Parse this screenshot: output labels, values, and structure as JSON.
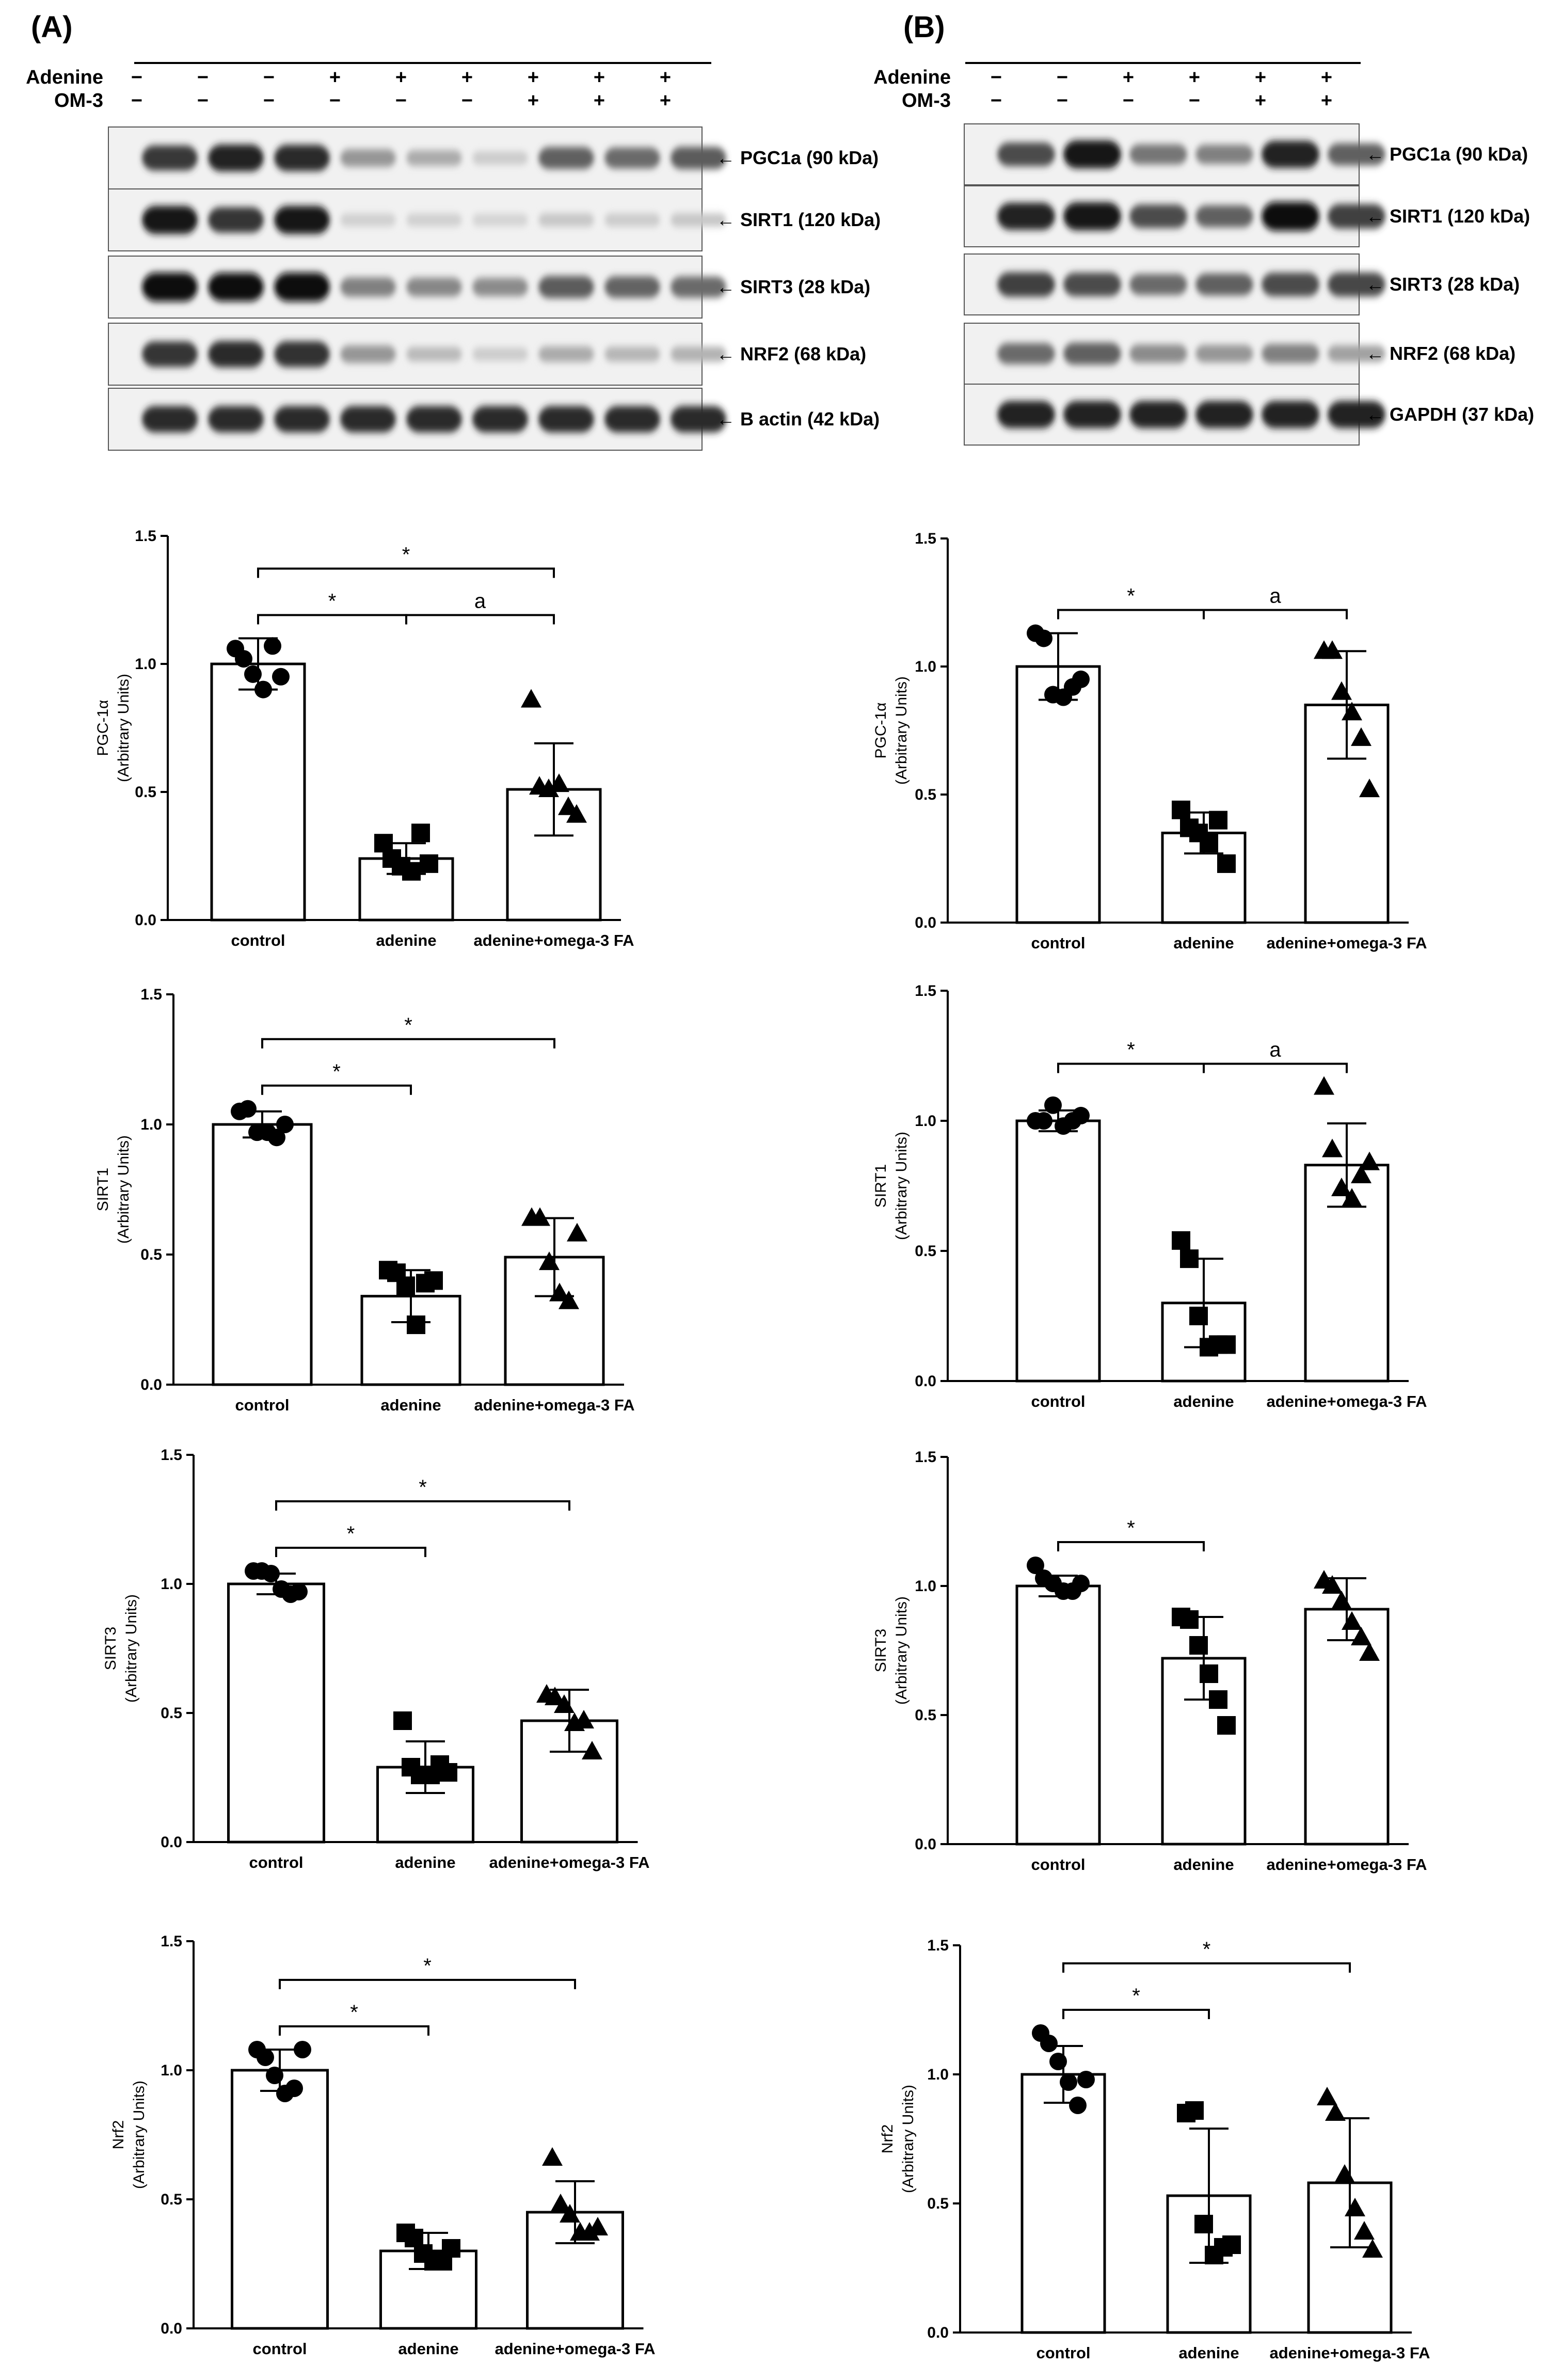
{
  "panels": [
    {
      "label": "(A)",
      "treatment_rows": [
        {
          "name": "Adenine",
          "signs": [
            "−",
            "−",
            "−",
            "+",
            "+",
            "+",
            "+",
            "+",
            "+"
          ]
        },
        {
          "name": "OM-3",
          "signs": [
            "−",
            "−",
            "−",
            "−",
            "−",
            "−",
            "+",
            "+",
            "+"
          ]
        }
      ],
      "blots": [
        {
          "label": "← PGC1a (90 kDa)",
          "intensity": [
            0.78,
            0.88,
            0.85,
            0.35,
            0.25,
            0.1,
            0.6,
            0.55,
            0.62
          ]
        },
        {
          "label": "← SIRT1 (120 kDa)",
          "intensity": [
            0.95,
            0.8,
            0.95,
            0.08,
            0.08,
            0.06,
            0.12,
            0.1,
            0.12
          ]
        },
        {
          "label": "← SIRT3 (28 kDa)",
          "intensity": [
            1,
            0.98,
            1,
            0.45,
            0.42,
            0.4,
            0.62,
            0.58,
            0.55
          ]
        },
        {
          "label": "← NRF2 (68 kDa)",
          "intensity": [
            0.8,
            0.85,
            0.82,
            0.35,
            0.18,
            0.1,
            0.25,
            0.2,
            0.22
          ]
        },
        {
          "label": "← B actin (42 kDa)",
          "intensity": [
            0.85,
            0.85,
            0.85,
            0.85,
            0.85,
            0.85,
            0.85,
            0.85,
            0.85
          ]
        }
      ]
    },
    {
      "label": "(B)",
      "treatment_rows": [
        {
          "name": "Adenine",
          "signs": [
            "−",
            "−",
            "+",
            "+",
            "+",
            "+"
          ]
        },
        {
          "name": "OM-3",
          "signs": [
            "−",
            "−",
            "−",
            "−",
            "+",
            "+"
          ]
        }
      ],
      "blots": [
        {
          "label": "← PGC1a (90 kDa)",
          "intensity": [
            0.7,
            0.95,
            0.5,
            0.45,
            0.9,
            0.6
          ]
        },
        {
          "label": "← SIRT1 (120 kDa)",
          "intensity": [
            0.9,
            0.95,
            0.7,
            0.6,
            1,
            0.75
          ]
        },
        {
          "label": "← SIRT3 (28 kDa)",
          "intensity": [
            0.75,
            0.7,
            0.55,
            0.6,
            0.7,
            0.72
          ]
        },
        {
          "label": "← NRF2 (68 kDa)",
          "intensity": [
            0.55,
            0.6,
            0.4,
            0.35,
            0.45,
            0.3
          ]
        },
        {
          "label": "← GAPDH (37 kDa)",
          "intensity": [
            0.9,
            0.9,
            0.9,
            0.9,
            0.9,
            0.9
          ]
        }
      ]
    }
  ],
  "chart_data": [
    {
      "type": "bar",
      "panel": "A",
      "categories": [
        "control",
        "adenine",
        "adenine+omega-3 FA"
      ],
      "values": [
        1.0,
        0.24,
        0.51
      ],
      "errors": [
        0.1,
        0.06,
        0.18
      ],
      "points": [
        [
          1.06,
          1.02,
          0.96,
          0.9,
          1.07,
          0.95
        ],
        [
          0.3,
          0.24,
          0.21,
          0.19,
          0.34,
          0.22
        ],
        [
          0.86,
          0.52,
          0.51,
          0.53,
          0.44,
          0.41
        ]
      ],
      "markers": [
        "circle",
        "square",
        "triangle"
      ],
      "title": "",
      "xlabel": "",
      "ylabel": [
        "PGC-1α",
        "(Arbitrary Units)"
      ],
      "yticks": [
        "0.0",
        "0.5",
        "1.0",
        "1.5"
      ],
      "ylim": [
        0,
        1.5
      ],
      "brackets": [
        {
          "from": 0,
          "to": 1,
          "label": "*"
        },
        {
          "from": 1,
          "to": 2,
          "label": "a"
        },
        {
          "from": 0,
          "to": 2,
          "label": "*"
        }
      ]
    },
    {
      "type": "bar",
      "panel": "B",
      "categories": [
        "control",
        "adenine",
        "adenine+omega-3 FA"
      ],
      "values": [
        1.0,
        0.35,
        0.85
      ],
      "errors": [
        0.13,
        0.08,
        0.21
      ],
      "points": [
        [
          1.13,
          1.11,
          0.89,
          0.88,
          0.92,
          0.95
        ],
        [
          0.44,
          0.37,
          0.35,
          0.31,
          0.4,
          0.23
        ],
        [
          1.06,
          1.06,
          0.9,
          0.82,
          0.72,
          0.52
        ]
      ],
      "markers": [
        "circle",
        "square",
        "triangle"
      ],
      "title": "",
      "xlabel": "",
      "ylabel": [
        "PGC-1α",
        "(Arbitrary Units)"
      ],
      "yticks": [
        "0.0",
        "0.5",
        "1.0",
        "1.5"
      ],
      "ylim": [
        0,
        1.5
      ],
      "brackets": [
        {
          "from": 0,
          "to": 1,
          "label": "*"
        },
        {
          "from": 1,
          "to": 2,
          "label": "a"
        }
      ]
    },
    {
      "type": "bar",
      "panel": "A",
      "categories": [
        "control",
        "adenine",
        "adenine+omega-3 FA"
      ],
      "values": [
        1.0,
        0.34,
        0.49
      ],
      "errors": [
        0.05,
        0.1,
        0.15
      ],
      "points": [
        [
          1.05,
          1.06,
          0.97,
          0.97,
          0.95,
          1.0
        ],
        [
          0.44,
          0.43,
          0.38,
          0.23,
          0.39,
          0.4
        ],
        [
          0.64,
          0.64,
          0.47,
          0.35,
          0.32,
          0.58
        ]
      ],
      "markers": [
        "circle",
        "square",
        "triangle"
      ],
      "title": "",
      "xlabel": "",
      "ylabel": [
        "SIRT1",
        "(Arbitrary Units)"
      ],
      "yticks": [
        "0.0",
        "0.5",
        "1.0",
        "1.5"
      ],
      "ylim": [
        0,
        1.5
      ],
      "brackets": [
        {
          "from": 0,
          "to": 1,
          "label": "*"
        },
        {
          "from": 0,
          "to": 2,
          "label": "*"
        }
      ]
    },
    {
      "type": "bar",
      "panel": "B",
      "categories": [
        "control",
        "adenine",
        "adenine+omega-3 FA"
      ],
      "values": [
        1.0,
        0.3,
        0.83
      ],
      "errors": [
        0.04,
        0.17,
        0.16
      ],
      "points": [
        [
          1.0,
          1.0,
          1.06,
          0.98,
          1.0,
          1.02
        ],
        [
          0.54,
          0.47,
          0.25,
          0.13,
          0.14,
          0.14
        ],
        [
          1.13,
          0.89,
          0.74,
          0.7,
          0.79,
          0.84
        ]
      ],
      "markers": [
        "circle",
        "square",
        "triangle"
      ],
      "title": "",
      "xlabel": "",
      "ylabel": [
        "SIRT1",
        "(Arbitrary Units)"
      ],
      "yticks": [
        "0.0",
        "0.5",
        "1.0",
        "1.5"
      ],
      "ylim": [
        0,
        1.5
      ],
      "brackets": [
        {
          "from": 0,
          "to": 1,
          "label": "*"
        },
        {
          "from": 1,
          "to": 2,
          "label": "a"
        }
      ]
    },
    {
      "type": "bar",
      "panel": "A",
      "categories": [
        "control",
        "adenine",
        "adenine+omega-3 FA"
      ],
      "values": [
        1.0,
        0.29,
        0.47
      ],
      "errors": [
        0.04,
        0.1,
        0.12
      ],
      "points": [
        [
          1.05,
          1.05,
          1.04,
          0.98,
          0.96,
          0.97
        ],
        [
          0.47,
          0.29,
          0.26,
          0.26,
          0.3,
          0.27
        ],
        [
          0.57,
          0.56,
          0.53,
          0.46,
          0.47,
          0.35
        ]
      ],
      "markers": [
        "circle",
        "square",
        "triangle"
      ],
      "title": "",
      "xlabel": "",
      "ylabel": [
        "SIRT3",
        "(Arbitrary Units)"
      ],
      "yticks": [
        "0.0",
        "0.5",
        "1.0",
        "1.5"
      ],
      "ylim": [
        0,
        1.5
      ],
      "brackets": [
        {
          "from": 0,
          "to": 1,
          "label": "*"
        },
        {
          "from": 0,
          "to": 2,
          "label": "*"
        }
      ]
    },
    {
      "type": "bar",
      "panel": "B",
      "categories": [
        "control",
        "adenine",
        "adenine+omega-3 FA"
      ],
      "values": [
        1.0,
        0.72,
        0.91
      ],
      "errors": [
        0.04,
        0.16,
        0.12
      ],
      "points": [
        [
          1.08,
          1.03,
          1.01,
          0.98,
          0.98,
          1.01
        ],
        [
          0.88,
          0.87,
          0.77,
          0.66,
          0.56,
          0.46
        ],
        [
          1.02,
          1.0,
          0.94,
          0.86,
          0.8,
          0.74
        ]
      ],
      "markers": [
        "circle",
        "square",
        "triangle"
      ],
      "title": "",
      "xlabel": "",
      "ylabel": [
        "SIRT3",
        "(Arbitrary Units)"
      ],
      "yticks": [
        "0.0",
        "0.5",
        "1.0",
        "1.5"
      ],
      "ylim": [
        0,
        1.5
      ],
      "brackets": [
        {
          "from": 0,
          "to": 1,
          "label": "*"
        }
      ]
    },
    {
      "type": "bar",
      "panel": "A",
      "categories": [
        "control",
        "adenine",
        "adenine+omega-3 FA"
      ],
      "values": [
        1.0,
        0.3,
        0.45
      ],
      "errors": [
        0.08,
        0.07,
        0.12
      ],
      "points": [
        [
          1.08,
          1.05,
          0.98,
          0.91,
          0.93,
          1.08
        ],
        [
          0.37,
          0.35,
          0.29,
          0.26,
          0.26,
          0.31
        ],
        [
          0.66,
          0.48,
          0.44,
          0.37,
          0.37,
          0.39
        ]
      ],
      "markers": [
        "circle",
        "square",
        "triangle"
      ],
      "title": "",
      "xlabel": "",
      "ylabel": [
        "Nrf2",
        "(Arbitrary Units)"
      ],
      "yticks": [
        "0.0",
        "0.5",
        "1.0",
        "1.5"
      ],
      "ylim": [
        0,
        1.5
      ],
      "brackets": [
        {
          "from": 0,
          "to": 1,
          "label": "*"
        },
        {
          "from": 0,
          "to": 2,
          "label": "*"
        }
      ]
    },
    {
      "type": "bar",
      "panel": "B",
      "categories": [
        "control",
        "adenine",
        "adenine+omega-3 FA"
      ],
      "values": [
        1.0,
        0.53,
        0.58
      ],
      "errors": [
        0.11,
        0.26,
        0.25
      ],
      "points": [
        [
          1.16,
          1.12,
          1.05,
          0.97,
          0.88,
          0.98
        ],
        [
          0.85,
          0.86,
          0.42,
          0.3,
          0.33,
          0.34
        ],
        [
          0.91,
          0.85,
          0.61,
          0.48,
          0.39,
          0.32
        ]
      ],
      "markers": [
        "circle",
        "square",
        "triangle"
      ],
      "title": "",
      "xlabel": "",
      "ylabel": [
        "Nrf2",
        "(Arbitrary Units)"
      ],
      "yticks": [
        "0.0",
        "0.5",
        "1.0",
        "1.5"
      ],
      "ylim": [
        0,
        1.5
      ],
      "brackets": [
        {
          "from": 0,
          "to": 1,
          "label": "*"
        },
        {
          "from": 0,
          "to": 2,
          "label": "*"
        }
      ]
    }
  ]
}
